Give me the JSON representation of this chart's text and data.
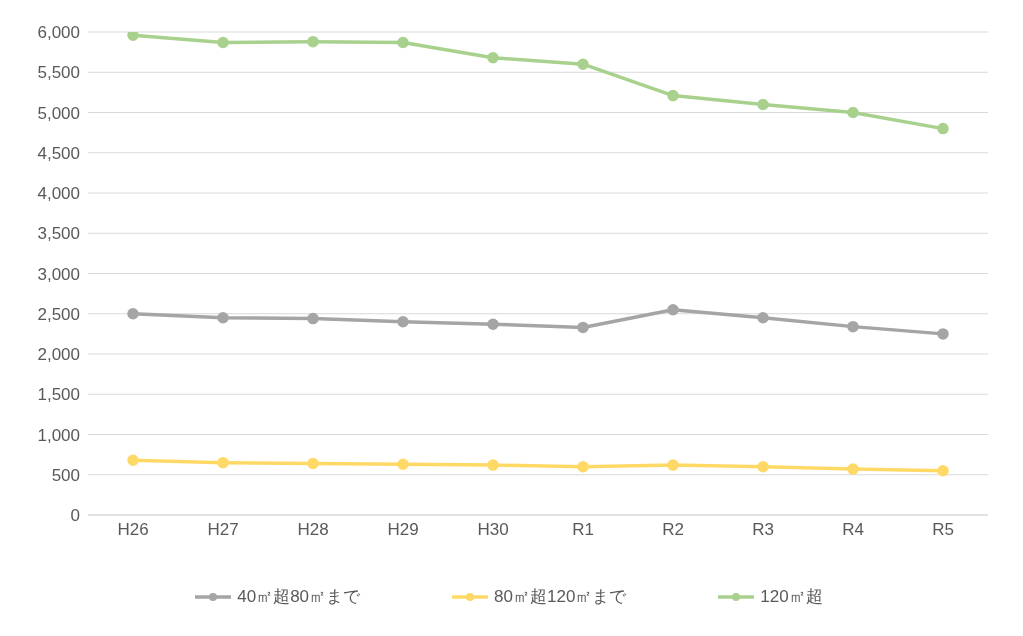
{
  "chart_data": {
    "type": "line",
    "categories": [
      "H26",
      "H27",
      "H28",
      "H29",
      "H30",
      "R1",
      "R2",
      "R3",
      "R4",
      "R5"
    ],
    "series": [
      {
        "name": "40㎡超80㎡まで",
        "color": "#a5a5a5",
        "values": [
          2500,
          2450,
          2440,
          2400,
          2370,
          2330,
          2550,
          2450,
          2340,
          2250
        ]
      },
      {
        "name": "80㎡超120㎡まで",
        "color": "#ffd966",
        "values": [
          680,
          650,
          640,
          630,
          620,
          600,
          620,
          600,
          570,
          550
        ]
      },
      {
        "name": "120㎡超",
        "color": "#a9d18e",
        "values": [
          5960,
          5870,
          5880,
          5870,
          5680,
          5600,
          5210,
          5100,
          5000,
          4800
        ]
      }
    ],
    "ylim": [
      0,
      6000
    ],
    "yticks": [
      0,
      500,
      {
        "value": 1000,
        "label": "1,000"
      },
      {
        "value": 1500,
        "label": "1,500"
      },
      {
        "value": 2000,
        "label": "2,000"
      },
      {
        "value": 2500,
        "label": "2,500"
      },
      {
        "value": 3000,
        "label": "3,000"
      },
      {
        "value": 3500,
        "label": "3,500"
      },
      {
        "value": 4000,
        "label": "4,000"
      },
      {
        "value": 4500,
        "label": "4,500"
      },
      {
        "value": 5000,
        "label": "5,000"
      },
      {
        "value": 5500,
        "label": "5,500"
      },
      {
        "value": 6000,
        "label": "6,000"
      }
    ],
    "grid": "y",
    "legend": "bottom",
    "marker": "circle",
    "line_style": "solid"
  }
}
